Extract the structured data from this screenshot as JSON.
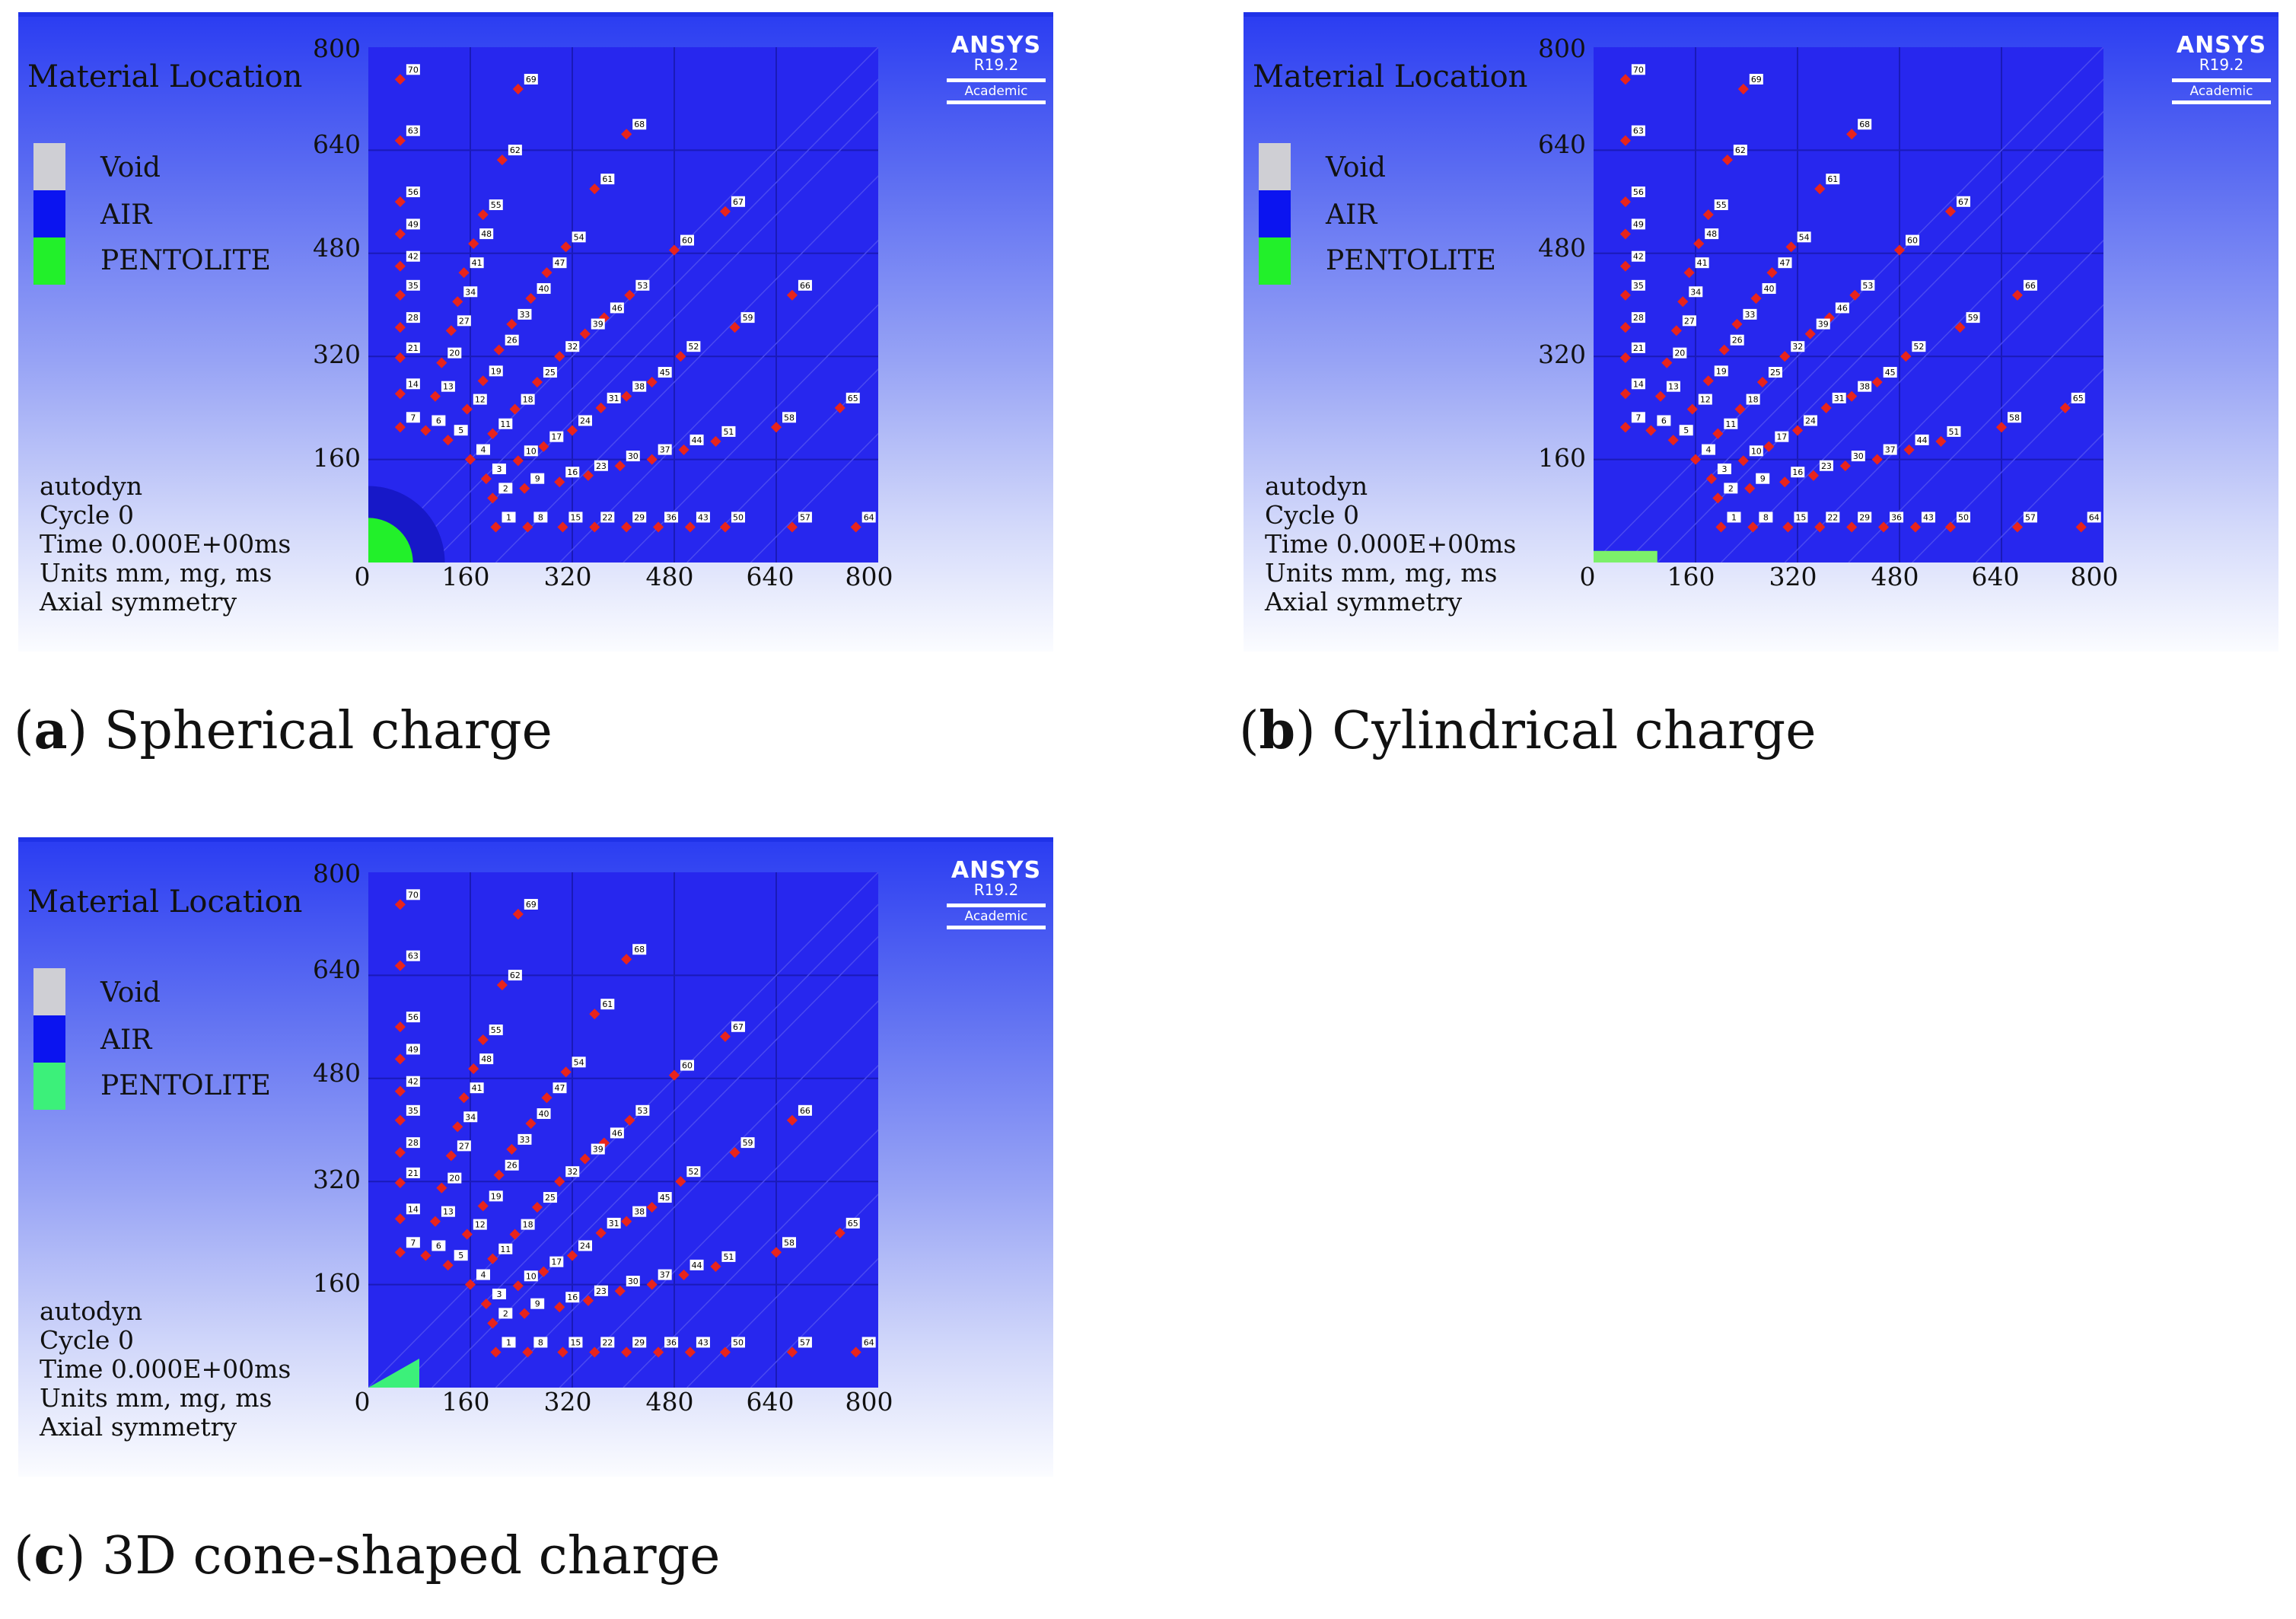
{
  "panels": [
    {
      "legend_title": "Material Location",
      "legend": [
        {
          "label": "Void",
          "color": "#cfcfd4"
        },
        {
          "label": "AIR",
          "color": "#0b14f0"
        },
        {
          "label": "PENTOLITE",
          "color": "#22f02a"
        }
      ],
      "info": [
        "autodyn",
        "Cycle 0",
        "Time 0.000E+00ms",
        "Units mm, mg, ms",
        "Axial symmetry"
      ],
      "y_ticks": [
        "800",
        "640",
        "480",
        "320",
        "160"
      ],
      "x_ticks": [
        "0",
        "160",
        "320",
        "480",
        "640",
        "800"
      ],
      "logo": {
        "name": "ANSYS",
        "version": "R19.2",
        "edition": "Academic"
      },
      "charge": "sphere",
      "charge_color": "#22f02a",
      "caption": {
        "letter": "a",
        "text": "Spherical charge"
      }
    },
    {
      "legend_title": "Material Location",
      "legend": [
        {
          "label": "Void",
          "color": "#cfcfd4"
        },
        {
          "label": "AIR",
          "color": "#0b14f0"
        },
        {
          "label": "PENTOLITE",
          "color": "#22f02a"
        }
      ],
      "info": [
        "autodyn",
        "Cycle 0",
        "Time 0.000E+00ms",
        "Units mm, mg, ms",
        "Axial symmetry"
      ],
      "y_ticks": [
        "800",
        "640",
        "480",
        "320",
        "160"
      ],
      "x_ticks": [
        "0",
        "160",
        "320",
        "480",
        "640",
        "800"
      ],
      "logo": {
        "name": "ANSYS",
        "version": "R19.2",
        "edition": "Academic"
      },
      "charge": "cylinder",
      "charge_color": "#7cf06a",
      "caption": {
        "letter": "b",
        "text": "Cylindrical charge"
      }
    },
    {
      "legend_title": "Material Location",
      "legend": [
        {
          "label": "Void",
          "color": "#cfcfd4"
        },
        {
          "label": "AIR",
          "color": "#0b14f0"
        },
        {
          "label": "PENTOLITE",
          "color": "#3cf07a"
        }
      ],
      "info": [
        "autodyn",
        "Cycle 0",
        "Time 0.000E+00ms",
        "Units mm, mg, ms",
        "Axial symmetry"
      ],
      "y_ticks": [
        "800",
        "640",
        "480",
        "320",
        "160"
      ],
      "x_ticks": [
        "0",
        "160",
        "320",
        "480",
        "640",
        "800"
      ],
      "logo": {
        "name": "ANSYS",
        "version": "R19.2",
        "edition": "Academic"
      },
      "charge": "cone",
      "charge_color": "#3cf07a",
      "caption": {
        "letter": "c",
        "text": "3D cone-shaped charge"
      }
    }
  ],
  "gauge_points": [
    {
      "id": "70",
      "x": 50,
      "y": 750
    },
    {
      "id": "69",
      "x": 235,
      "y": 735
    },
    {
      "id": "63",
      "x": 50,
      "y": 655
    },
    {
      "id": "68",
      "x": 405,
      "y": 665
    },
    {
      "id": "62",
      "x": 210,
      "y": 625
    },
    {
      "id": "61",
      "x": 355,
      "y": 580
    },
    {
      "id": "56",
      "x": 50,
      "y": 560
    },
    {
      "id": "55",
      "x": 180,
      "y": 540
    },
    {
      "id": "67",
      "x": 560,
      "y": 545
    },
    {
      "id": "49",
      "x": 50,
      "y": 510
    },
    {
      "id": "48",
      "x": 165,
      "y": 495
    },
    {
      "id": "54",
      "x": 310,
      "y": 490
    },
    {
      "id": "60",
      "x": 480,
      "y": 485
    },
    {
      "id": "42",
      "x": 50,
      "y": 460
    },
    {
      "id": "41",
      "x": 150,
      "y": 450
    },
    {
      "id": "47",
      "x": 280,
      "y": 450
    },
    {
      "id": "35",
      "x": 50,
      "y": 415
    },
    {
      "id": "34",
      "x": 140,
      "y": 405
    },
    {
      "id": "40",
      "x": 255,
      "y": 410
    },
    {
      "id": "53",
      "x": 410,
      "y": 415
    },
    {
      "id": "66",
      "x": 665,
      "y": 415
    },
    {
      "id": "28",
      "x": 50,
      "y": 365
    },
    {
      "id": "27",
      "x": 130,
      "y": 360
    },
    {
      "id": "33",
      "x": 225,
      "y": 370
    },
    {
      "id": "46",
      "x": 370,
      "y": 380
    },
    {
      "id": "39",
      "x": 340,
      "y": 355
    },
    {
      "id": "59",
      "x": 575,
      "y": 365
    },
    {
      "id": "21",
      "x": 50,
      "y": 318
    },
    {
      "id": "20",
      "x": 115,
      "y": 310
    },
    {
      "id": "26",
      "x": 205,
      "y": 330
    },
    {
      "id": "32",
      "x": 300,
      "y": 320
    },
    {
      "id": "52",
      "x": 490,
      "y": 320
    },
    {
      "id": "45",
      "x": 445,
      "y": 280
    },
    {
      "id": "19",
      "x": 180,
      "y": 282
    },
    {
      "id": "25",
      "x": 265,
      "y": 280
    },
    {
      "id": "14",
      "x": 50,
      "y": 262
    },
    {
      "id": "13",
      "x": 105,
      "y": 258
    },
    {
      "id": "38",
      "x": 405,
      "y": 258
    },
    {
      "id": "12",
      "x": 155,
      "y": 238
    },
    {
      "id": "18",
      "x": 230,
      "y": 238
    },
    {
      "id": "31",
      "x": 365,
      "y": 240
    },
    {
      "id": "7",
      "x": 50,
      "y": 210
    },
    {
      "id": "6",
      "x": 90,
      "y": 205
    },
    {
      "id": "11",
      "x": 195,
      "y": 200
    },
    {
      "id": "24",
      "x": 320,
      "y": 205
    },
    {
      "id": "65",
      "x": 740,
      "y": 240
    },
    {
      "id": "58",
      "x": 640,
      "y": 210
    },
    {
      "id": "5",
      "x": 125,
      "y": 190
    },
    {
      "id": "51",
      "x": 545,
      "y": 188
    },
    {
      "id": "17",
      "x": 275,
      "y": 180
    },
    {
      "id": "44",
      "x": 495,
      "y": 175
    },
    {
      "id": "4",
      "x": 160,
      "y": 160
    },
    {
      "id": "10",
      "x": 235,
      "y": 158
    },
    {
      "id": "37",
      "x": 445,
      "y": 160
    },
    {
      "id": "30",
      "x": 395,
      "y": 150
    },
    {
      "id": "3",
      "x": 185,
      "y": 130
    },
    {
      "id": "23",
      "x": 345,
      "y": 135
    },
    {
      "id": "16",
      "x": 300,
      "y": 125
    },
    {
      "id": "9",
      "x": 245,
      "y": 115
    },
    {
      "id": "2",
      "x": 195,
      "y": 100
    },
    {
      "id": "1",
      "x": 200,
      "y": 55
    },
    {
      "id": "8",
      "x": 250,
      "y": 55
    },
    {
      "id": "15",
      "x": 305,
      "y": 55
    },
    {
      "id": "22",
      "x": 355,
      "y": 55
    },
    {
      "id": "29",
      "x": 405,
      "y": 55
    },
    {
      "id": "36",
      "x": 455,
      "y": 55
    },
    {
      "id": "43",
      "x": 505,
      "y": 55
    },
    {
      "id": "50",
      "x": 560,
      "y": 55
    },
    {
      "id": "57",
      "x": 665,
      "y": 55
    },
    {
      "id": "64",
      "x": 765,
      "y": 55
    }
  ],
  "point_color": "#e8241c"
}
